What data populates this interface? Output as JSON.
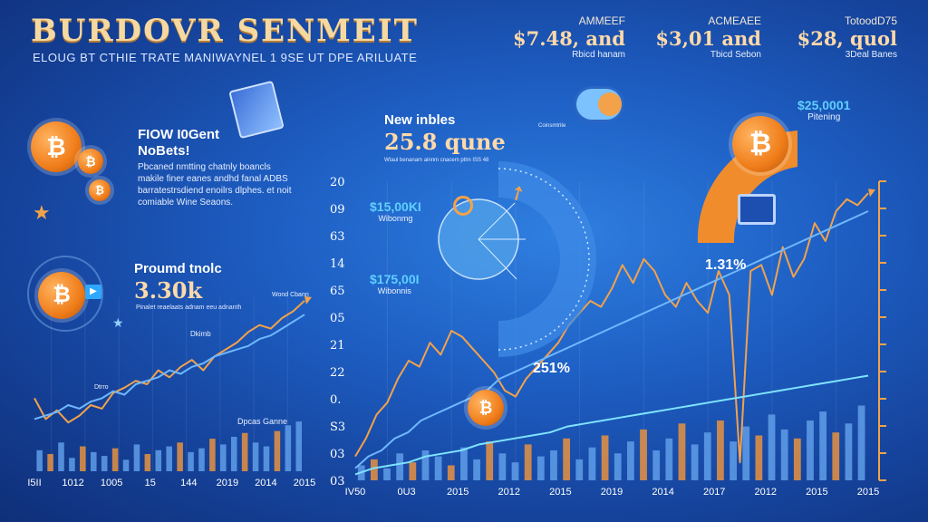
{
  "header": {
    "title": "BURDOVR SENMEIT",
    "subtitle": "ELOUG BT CTHIE TRATE MANIWAYNEL 1 9SE UT DPE ARILUATE"
  },
  "stats": [
    {
      "label": "AMMEEF",
      "value": "$7.48, and",
      "sub": "Rbicd hanam"
    },
    {
      "label": "ACMEAEE",
      "value": "$3,01 and",
      "sub": "Tbicd Sebon"
    },
    {
      "label": "TotoodD75",
      "value": "$28, quol",
      "sub": "3Deal Banes"
    }
  ],
  "left_top": {
    "heading": "FIOW I0Gent\nNoBets!",
    "body": "Pbcaned nmtting chatnly boancls\nmakile finer eanes andhd fanal ADBS\nbarratestrsdiend enoilrs dlphes. et noit\ncomiable Wine Seaons."
  },
  "left_mid": {
    "heading": "Proumd tnolc",
    "value": "3.30k",
    "note": "Pinalet reaelaats adnam eeu adnanth"
  },
  "center": {
    "heading": "New inbles",
    "value": "25.8 qune",
    "note": "Wtaul benanam ainnm cnacem ptlm ISS 48",
    "left_badge_top": {
      "value": "$15,00KI",
      "sub": "Wibonmg"
    },
    "left_badge_bottom": {
      "value": "$175,00I",
      "sub": "Wibonnis"
    },
    "pct_center": "251%",
    "pct_right": "1.31%",
    "right_badge": {
      "value": "$25,0001",
      "sub": "Pitening"
    },
    "icon_note": "Coinsmtrite"
  },
  "left_chart_notes": [
    "Dkimb",
    "Wond Cbann",
    "Dtrro",
    "Dpcas Ganne"
  ],
  "chart_data": [
    {
      "type": "line",
      "title": "",
      "x_ticks": [
        "I5II",
        "1012",
        "1005",
        "15",
        "144",
        "2019",
        "2014",
        "2015"
      ],
      "series": [
        {
          "color": "#f3a24a",
          "values": [
            42,
            30,
            35,
            28,
            32,
            38,
            36,
            45,
            48,
            52,
            50,
            58,
            54,
            60,
            64,
            58,
            66,
            70,
            74,
            80,
            84,
            82,
            88,
            92,
            98
          ]
        },
        {
          "color": "#6fb8ff",
          "values": [
            30,
            32,
            34,
            38,
            36,
            40,
            42,
            46,
            44,
            50,
            52,
            54,
            58,
            56,
            60,
            62,
            66,
            68,
            70,
            72,
            76,
            78,
            82,
            86,
            90
          ]
        }
      ],
      "bars": [
        22,
        18,
        30,
        14,
        26,
        20,
        16,
        24,
        12,
        28,
        18,
        22,
        26,
        30,
        20,
        24,
        34,
        28,
        36,
        40,
        30,
        26,
        42,
        48,
        52
      ],
      "ylim": [
        0,
        100
      ]
    },
    {
      "type": "line",
      "title": "",
      "y_ticks": [
        "20",
        "09",
        "63",
        "14",
        "65",
        "05",
        "21",
        "22",
        "0.",
        "S3",
        "03",
        "03"
      ],
      "x_ticks": [
        "IV50",
        "0U3",
        "2015",
        "2012",
        "2015",
        "2019",
        "2014",
        "2017",
        "2012",
        "2015",
        "2015"
      ],
      "series": [
        {
          "color": "#f3a24a",
          "values": [
            8,
            14,
            22,
            26,
            34,
            40,
            38,
            46,
            42,
            50,
            48,
            44,
            40,
            36,
            30,
            28,
            34,
            38,
            42,
            46,
            52,
            56,
            60,
            58,
            64,
            72,
            66,
            74,
            70,
            62,
            58,
            66,
            60,
            56,
            70,
            62,
            6,
            70,
            72,
            62,
            78,
            68,
            74,
            86,
            80,
            90,
            94,
            92,
            96
          ]
        },
        {
          "color": "#6fb8ff",
          "values": [
            4,
            8,
            10,
            14,
            16,
            20,
            22,
            24,
            26,
            28,
            30,
            34,
            36,
            38,
            40,
            42,
            44,
            46,
            48,
            50,
            52,
            54,
            56,
            58,
            60,
            62,
            64,
            66,
            68,
            70,
            72,
            74,
            76,
            78,
            80,
            82,
            84,
            86,
            88,
            90
          ]
        },
        {
          "color": "#7fe3ff",
          "values": [
            2,
            4,
            5,
            6,
            8,
            9,
            10,
            12,
            13,
            14,
            15,
            16,
            18,
            19,
            20,
            21,
            22,
            23,
            24,
            25,
            26,
            27,
            28,
            29,
            30,
            31,
            32,
            33,
            34,
            35
          ]
        }
      ],
      "bars": [
        10,
        14,
        8,
        18,
        12,
        20,
        16,
        10,
        22,
        14,
        26,
        18,
        12,
        24,
        16,
        20,
        28,
        14,
        22,
        30,
        18,
        26,
        34,
        20,
        28,
        38,
        24,
        32,
        40,
        26,
        36,
        30,
        44,
        34,
        28,
        40,
        46,
        32,
        38,
        50
      ],
      "ylim": [
        0,
        100
      ]
    }
  ],
  "colors": {
    "orange": "#f3a24a",
    "blue": "#6fb8ff",
    "cyan": "#7fe3ff",
    "bar_blue": "#5f9ee8",
    "bar_orange": "#e89240"
  }
}
